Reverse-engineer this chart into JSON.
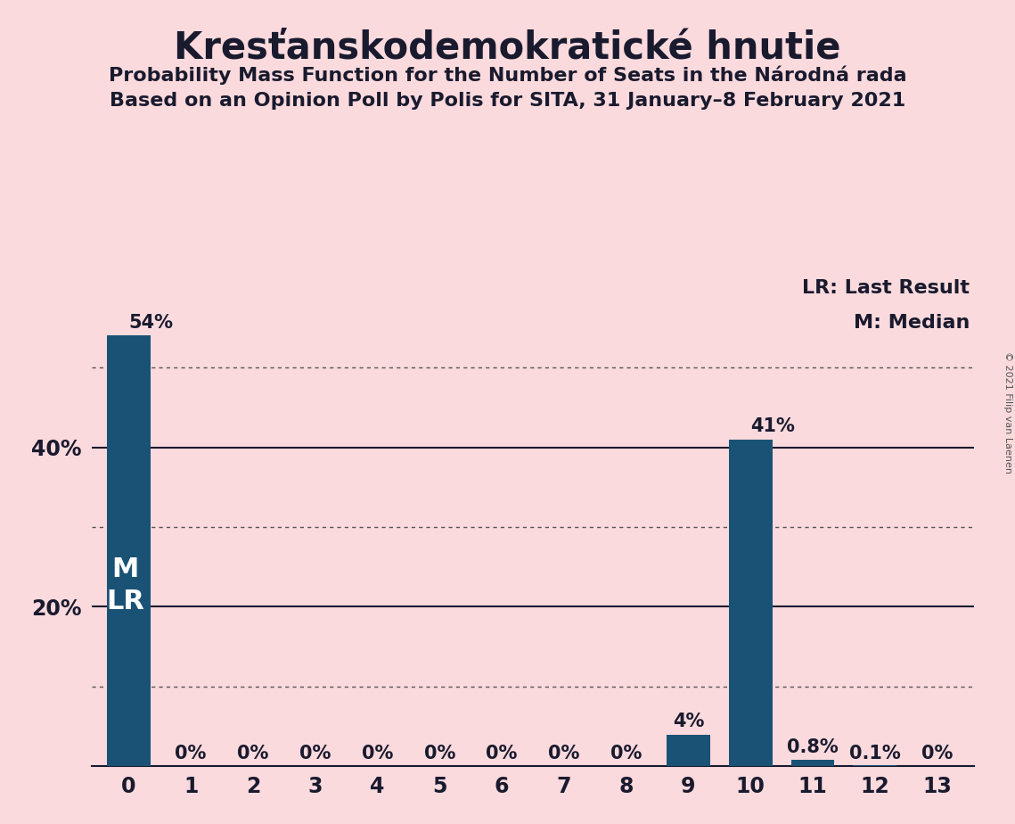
{
  "title": "Kresťanskodemokratické hnutie",
  "subtitle1": "Probability Mass Function for the Number of Seats in the Národná rada",
  "subtitle2": "Based on an Opinion Poll by Polis for SITA, 31 January–8 February 2021",
  "copyright": "© 2021 Filip van Laenen",
  "categories": [
    0,
    1,
    2,
    3,
    4,
    5,
    6,
    7,
    8,
    9,
    10,
    11,
    12,
    13
  ],
  "values": [
    54,
    0,
    0,
    0,
    0,
    0,
    0,
    0,
    0,
    4,
    41,
    0.8,
    0.1,
    0
  ],
  "bar_labels": [
    "54%",
    "0%",
    "0%",
    "0%",
    "0%",
    "0%",
    "0%",
    "0%",
    "0%",
    "4%",
    "41%",
    "0.8%",
    "0.1%",
    "0%"
  ],
  "bar_color": "#1a5276",
  "background_color": "#fadadd",
  "title_fontsize": 30,
  "subtitle_fontsize": 16,
  "label_fontsize": 15,
  "tick_fontsize": 17,
  "ylim": [
    0,
    62
  ],
  "solid_grid_values": [
    20,
    40
  ],
  "dotted_grid_values": [
    10,
    30,
    50
  ],
  "legend_lr": "LR: Last Result",
  "legend_m": "M: Median",
  "bar_label_color_inside": "#ffffff",
  "bar_label_color_outside": "#1a1a2e",
  "inside_threshold": 8,
  "ml_fontsize": 22
}
